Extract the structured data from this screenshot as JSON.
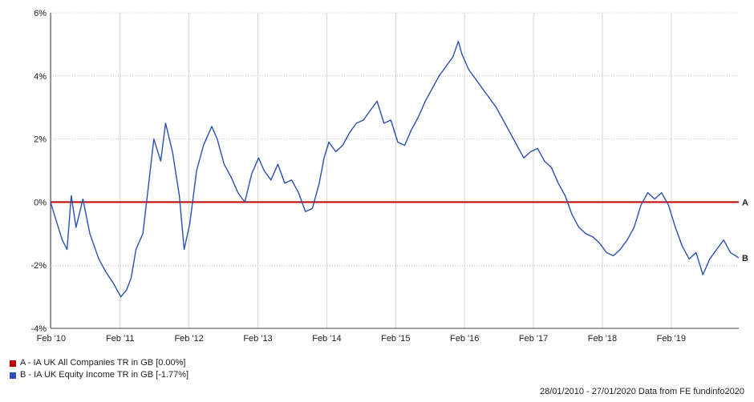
{
  "chart_data": {
    "type": "line",
    "ylim": [
      -4,
      6
    ],
    "y_ticks": [
      "6%",
      "4%",
      "2%",
      "0%",
      "-2%",
      "-4%"
    ],
    "y_tick_values": [
      6,
      4,
      2,
      0,
      -2,
      -4
    ],
    "x_ticks": [
      "Feb '10",
      "Feb '11",
      "Feb '12",
      "Feb '13",
      "Feb '14",
      "Feb '15",
      "Feb '16",
      "Feb '17",
      "Feb '18",
      "Feb '19"
    ],
    "x_tick_years": [
      2010.09,
      2011.09,
      2012.09,
      2013.09,
      2014.09,
      2015.09,
      2016.09,
      2017.09,
      2018.09,
      2019.09
    ],
    "xlim": [
      2010.08,
      2020.07
    ],
    "grid": true,
    "legend_placement": "bottom-left",
    "series": [
      {
        "name": "A - IA UK All Companies TR in GB [0.00%]",
        "end_label": "A",
        "color": "#c00000",
        "x": [
          2010.08,
          2020.07
        ],
        "y": [
          0,
          0
        ]
      },
      {
        "name": "B - IA UK Equity Income TR in GB [-1.77%]",
        "end_label": "B",
        "color": "#2a4fb0",
        "x": [
          2010.08,
          2010.15,
          2010.25,
          2010.32,
          2010.38,
          2010.45,
          2010.55,
          2010.65,
          2010.78,
          2010.88,
          2011.0,
          2011.1,
          2011.18,
          2011.25,
          2011.32,
          2011.42,
          2011.5,
          2011.58,
          2011.68,
          2011.75,
          2011.85,
          2011.95,
          2012.02,
          2012.1,
          2012.2,
          2012.3,
          2012.42,
          2012.5,
          2012.6,
          2012.7,
          2012.8,
          2012.9,
          2013.0,
          2013.1,
          2013.18,
          2013.28,
          2013.38,
          2013.48,
          2013.58,
          2013.68,
          2013.78,
          2013.88,
          2013.98,
          2014.05,
          2014.12,
          2014.22,
          2014.32,
          2014.42,
          2014.52,
          2014.62,
          2014.72,
          2014.82,
          2014.92,
          2015.02,
          2015.12,
          2015.22,
          2015.32,
          2015.42,
          2015.52,
          2015.62,
          2015.72,
          2015.82,
          2015.92,
          2016.0,
          2016.05,
          2016.15,
          2016.25,
          2016.35,
          2016.45,
          2016.55,
          2016.65,
          2016.75,
          2016.85,
          2016.95,
          2017.05,
          2017.15,
          2017.25,
          2017.35,
          2017.45,
          2017.55,
          2017.65,
          2017.75,
          2017.85,
          2017.95,
          2018.05,
          2018.15,
          2018.25,
          2018.35,
          2018.45,
          2018.55,
          2018.65,
          2018.75,
          2018.85,
          2018.95,
          2019.05,
          2019.15,
          2019.25,
          2019.35,
          2019.45,
          2019.55,
          2019.65,
          2019.75,
          2019.85,
          2019.95,
          2020.07
        ],
        "y": [
          0,
          -0.5,
          -1.2,
          -1.5,
          0.2,
          -0.8,
          0.1,
          -1.0,
          -1.8,
          -2.2,
          -2.6,
          -3.0,
          -2.8,
          -2.4,
          -1.5,
          -1.0,
          0.5,
          2.0,
          1.3,
          2.5,
          1.6,
          0.2,
          -1.5,
          -0.7,
          1.0,
          1.8,
          2.4,
          2.0,
          1.2,
          0.8,
          0.3,
          0.0,
          0.9,
          1.4,
          1.0,
          0.7,
          1.2,
          0.6,
          0.7,
          0.3,
          -0.3,
          -0.2,
          0.6,
          1.4,
          1.9,
          1.6,
          1.8,
          2.2,
          2.5,
          2.6,
          2.9,
          3.2,
          2.5,
          2.6,
          1.9,
          1.8,
          2.3,
          2.7,
          3.2,
          3.6,
          4.0,
          4.3,
          4.6,
          5.1,
          4.7,
          4.2,
          3.9,
          3.6,
          3.3,
          3.0,
          2.6,
          2.2,
          1.8,
          1.4,
          1.6,
          1.7,
          1.3,
          1.1,
          0.6,
          0.2,
          -0.4,
          -0.8,
          -1.0,
          -1.1,
          -1.3,
          -1.6,
          -1.7,
          -1.5,
          -1.2,
          -0.8,
          -0.1,
          0.3,
          0.1,
          0.3,
          -0.1,
          -0.8,
          -1.4,
          -1.8,
          -1.6,
          -2.3,
          -1.8,
          -1.5,
          -1.2,
          -1.6,
          -1.77
        ]
      }
    ]
  },
  "legend": [
    {
      "label": "A - IA UK All Companies TR in GB [0.00%]",
      "color": "#c00000"
    },
    {
      "label": "B - IA UK Equity Income TR in GB [-1.77%]",
      "color": "#2a4fb0"
    }
  ],
  "footer": "28/01/2010 - 27/01/2020 Data from FE fundinfo2020"
}
